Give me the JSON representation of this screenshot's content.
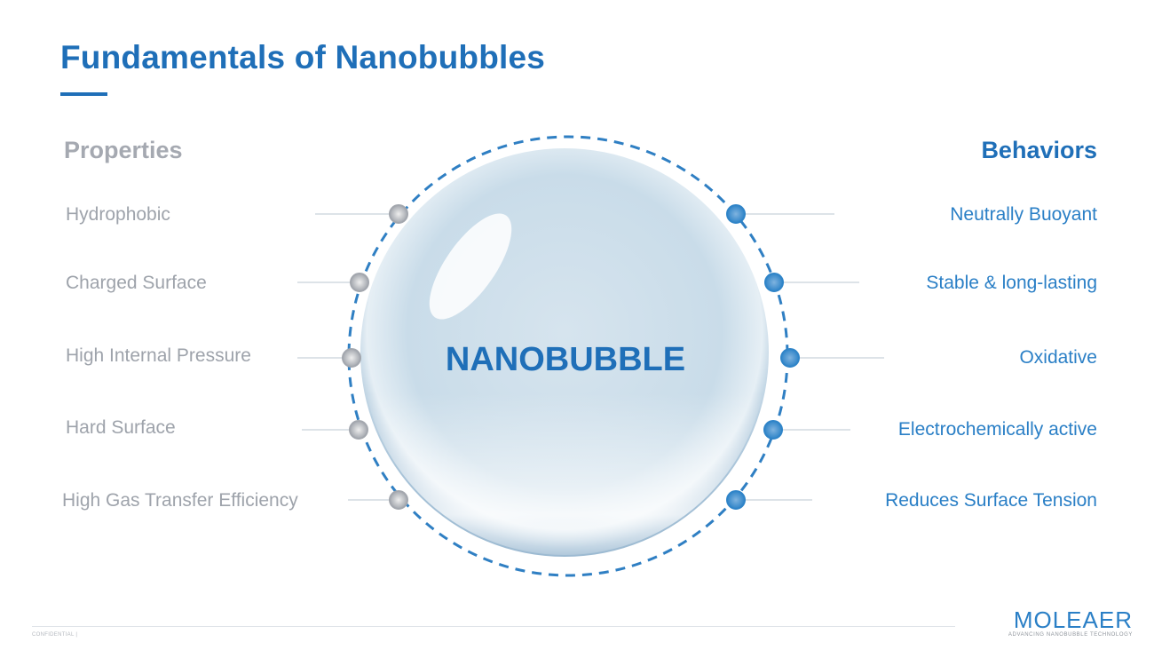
{
  "title": "Fundamentals of Nanobubbles",
  "center_label": "NANOBUBBLE",
  "properties": {
    "heading": "Properties",
    "items": [
      "Hydrophobic",
      "Charged Surface",
      "High Internal Pressure",
      "Hard Surface",
      "High Gas Transfer Efficiency"
    ]
  },
  "behaviors": {
    "heading": "Behaviors",
    "items": [
      "Neutrally Buoyant",
      "Stable & long-lasting",
      "Oxidative",
      "Electrochemically active",
      "Reduces Surface Tension"
    ]
  },
  "footer": {
    "confidential": "CONFIDENTIAL |"
  },
  "logo": {
    "name": "MOLEAER",
    "tagline": "Advancing Nanobubble Technology"
  },
  "colors": {
    "brand_blue": "#1f6fb8",
    "property_gray": "#a5a9b1",
    "behavior_blue": "#2a7fc6"
  }
}
